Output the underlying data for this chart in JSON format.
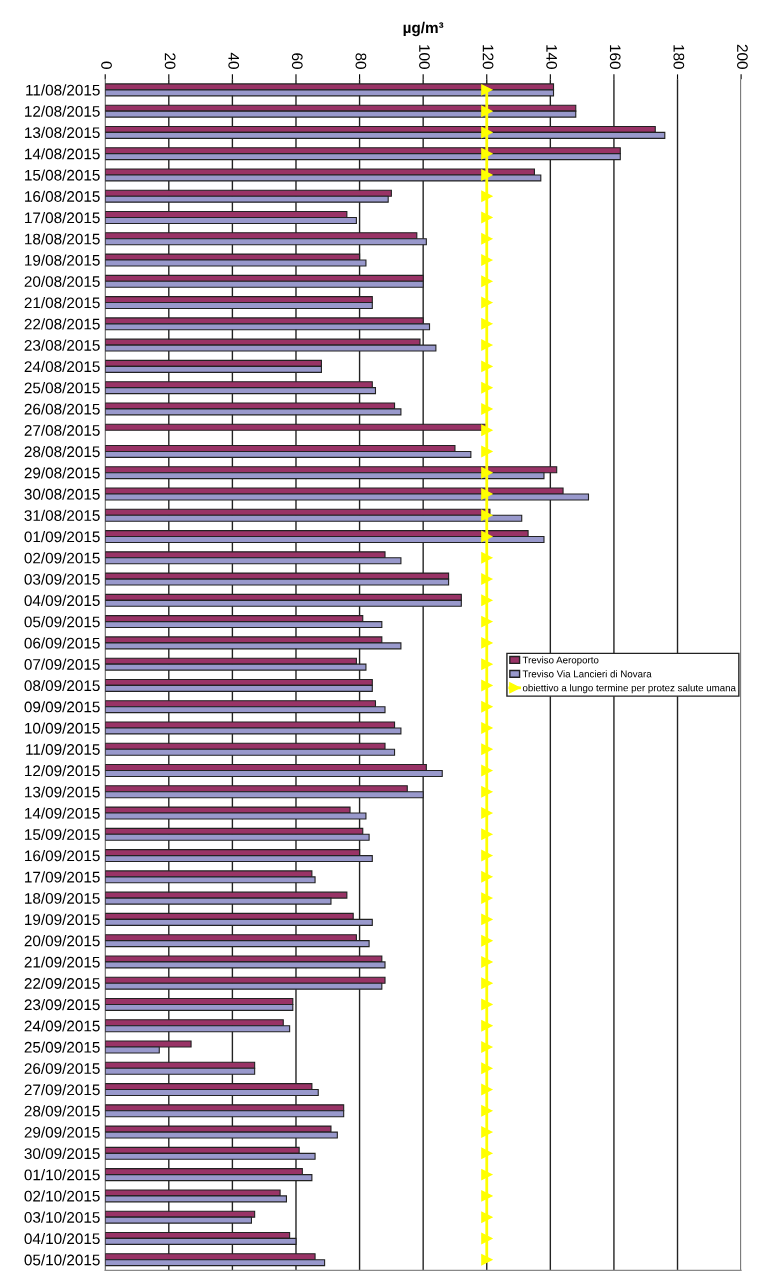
{
  "chart_data": {
    "type": "bar",
    "orientation": "horizontal",
    "xlabel": "µg/m³",
    "categories": [
      "11/08/2015",
      "12/08/2015",
      "13/08/2015",
      "14/08/2015",
      "15/08/2015",
      "16/08/2015",
      "17/08/2015",
      "18/08/2015",
      "19/08/2015",
      "20/08/2015",
      "21/08/2015",
      "22/08/2015",
      "23/08/2015",
      "24/08/2015",
      "25/08/2015",
      "26/08/2015",
      "27/08/2015",
      "28/08/2015",
      "29/08/2015",
      "30/08/2015",
      "31/08/2015",
      "01/09/2015",
      "02/09/2015",
      "03/09/2015",
      "04/09/2015",
      "05/09/2015",
      "06/09/2015",
      "07/09/2015",
      "08/09/2015",
      "09/09/2015",
      "10/09/2015",
      "11/09/2015",
      "12/09/2015",
      "13/09/2015",
      "14/09/2015",
      "15/09/2015",
      "16/09/2015",
      "17/09/2015",
      "18/09/2015",
      "19/09/2015",
      "20/09/2015",
      "21/09/2015",
      "22/09/2015",
      "23/09/2015",
      "24/09/2015",
      "25/09/2015",
      "26/09/2015",
      "27/09/2015",
      "28/09/2015",
      "29/09/2015",
      "30/09/2015",
      "01/10/2015",
      "02/10/2015",
      "03/10/2015",
      "04/10/2015",
      "05/10/2015"
    ],
    "series": [
      {
        "name": "Treviso Aeroporto",
        "color": "#993366",
        "values": [
          141,
          148,
          173,
          162,
          135,
          90,
          76,
          98,
          80,
          100,
          84,
          100,
          99,
          68,
          84,
          91,
          120,
          110,
          142,
          144,
          121,
          133,
          88,
          108,
          112,
          81,
          87,
          79,
          84,
          85,
          91,
          88,
          101,
          95,
          77,
          81,
          80,
          65,
          76,
          78,
          79,
          87,
          88,
          59,
          56,
          27,
          47,
          65,
          75,
          71,
          61,
          62,
          55,
          47,
          58,
          66
        ]
      },
      {
        "name": "Treviso Via Lancieri di Novara",
        "color": "#9999cc",
        "values": [
          141,
          148,
          176,
          162,
          137,
          89,
          79,
          101,
          82,
          100,
          84,
          102,
          104,
          68,
          85,
          93,
          null,
          115,
          138,
          152,
          131,
          138,
          93,
          108,
          112,
          87,
          93,
          82,
          84,
          88,
          93,
          91,
          106,
          100,
          82,
          83,
          84,
          66,
          71,
          84,
          83,
          88,
          87,
          59,
          58,
          17,
          47,
          67,
          75,
          73,
          66,
          65,
          57,
          46,
          60,
          69
        ]
      },
      {
        "name": "obiettivo a lungo termine per protez salute umana",
        "type": "line",
        "color": "#ffff00",
        "marker": "triangle",
        "values": [
          120,
          120,
          120,
          120,
          120,
          120,
          120,
          120,
          120,
          120,
          120,
          120,
          120,
          120,
          120,
          120,
          120,
          120,
          120,
          120,
          120,
          120,
          120,
          120,
          120,
          120,
          120,
          120,
          120,
          120,
          120,
          120,
          120,
          120,
          120,
          120,
          120,
          120,
          120,
          120,
          120,
          120,
          120,
          120,
          120,
          120,
          120,
          120,
          120,
          120,
          120,
          120,
          120,
          120,
          120,
          120
        ]
      }
    ],
    "xlim": [
      0,
      200
    ],
    "xticks": [
      0,
      20,
      40,
      60,
      80,
      100,
      120,
      140,
      160,
      180,
      200
    ],
    "grid": "x",
    "legend": "right"
  }
}
